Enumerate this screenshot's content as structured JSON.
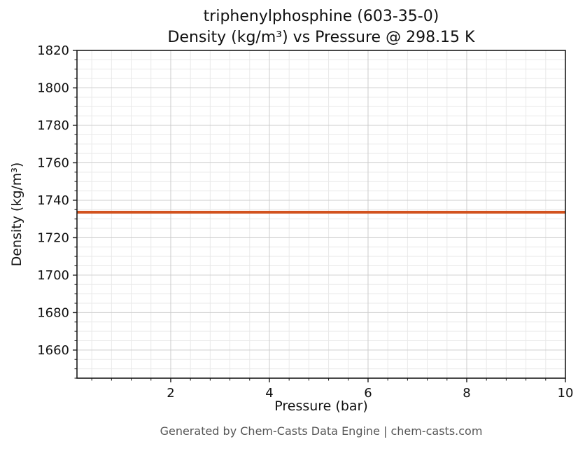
{
  "chart_data": {
    "type": "line",
    "title": "triphenylphosphine (603-35-0)",
    "subtitle": "Density (kg/m³) vs Pressure @ 298.15 K",
    "xlabel": "Pressure (bar)",
    "ylabel": "Density (kg/m³)",
    "xlim": [
      0.1,
      10
    ],
    "ylim": [
      1645,
      1820
    ],
    "xticks": [
      2,
      4,
      6,
      8,
      10
    ],
    "yticks": [
      1660,
      1680,
      1700,
      1720,
      1740,
      1760,
      1780,
      1800,
      1820
    ],
    "x_minor_step": 0.4,
    "y_minor_step": 5,
    "grid": true,
    "legend_position": "none",
    "colors": {
      "line": "#d2521e",
      "major_grid": "#cccccc",
      "minor_grid": "#e9e9e9",
      "spine": "#1a1a1a"
    },
    "series": [
      {
        "name": "Density (kg/m³)",
        "color": "#d2521e",
        "x": [
          0.1,
          10
        ],
        "y": [
          1733.6,
          1733.6
        ]
      }
    ]
  },
  "footer": {
    "text": "Generated by Chem-Casts Data Engine | chem-casts.com"
  }
}
